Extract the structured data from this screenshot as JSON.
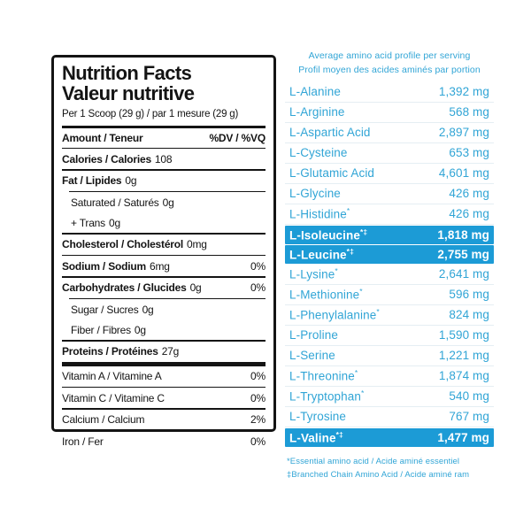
{
  "nutrition_label": {
    "title_line1": "Nutrition Facts",
    "title_line2": "Valeur nutritive",
    "serving_line": "Per 1 Scoop (29 g) / par 1 mesure (29 g)",
    "column_header": {
      "label": "Amount / Teneur",
      "dv": "%DV / %VQ"
    },
    "rows": [
      {
        "label": "Calories / Calories",
        "amount": "108",
        "dv": "",
        "bold": true,
        "indent": false,
        "divider_after": "thin"
      },
      {
        "label": "Fat / Lipides",
        "amount": "0g",
        "dv": "",
        "bold": true,
        "indent": false,
        "divider_after": "thin-indent"
      },
      {
        "label": "Saturated / Saturés",
        "amount": "0g",
        "dv": "",
        "bold": false,
        "indent": true,
        "divider_after": "none"
      },
      {
        "label": "+ Trans",
        "amount": "0g",
        "dv": "",
        "bold": false,
        "indent": true,
        "divider_after": "thin"
      },
      {
        "label": "Cholesterol / Cholestérol",
        "amount": "0mg",
        "dv": "",
        "bold": true,
        "indent": false,
        "divider_after": "thin"
      },
      {
        "label": "Sodium / Sodium",
        "amount": "6mg",
        "dv": "0%",
        "bold": true,
        "indent": false,
        "divider_after": "thin"
      },
      {
        "label": "Carbohydrates / Glucides",
        "amount": "0g",
        "dv": "0%",
        "bold": true,
        "indent": false,
        "divider_after": "thin-indent"
      },
      {
        "label": "Sugar / Sucres",
        "amount": "0g",
        "dv": "",
        "bold": false,
        "indent": true,
        "divider_after": "none"
      },
      {
        "label": "Fiber / Fibres",
        "amount": "0g",
        "dv": "",
        "bold": false,
        "indent": true,
        "divider_after": "thin"
      },
      {
        "label": "Proteins / Protéines",
        "amount": "27g",
        "dv": "",
        "bold": true,
        "indent": false,
        "divider_after": "thick"
      },
      {
        "label": "Vitamin A / Vitamine A",
        "amount": "",
        "dv": "0%",
        "bold": false,
        "indent": false,
        "divider_after": "thin"
      },
      {
        "label": "Vitamin C / Vitamine C",
        "amount": "",
        "dv": "0%",
        "bold": false,
        "indent": false,
        "divider_after": "thin"
      },
      {
        "label": "Calcium / Calcium",
        "amount": "",
        "dv": "2%",
        "bold": false,
        "indent": false,
        "divider_after": "thin"
      },
      {
        "label": "Iron / Fer",
        "amount": "",
        "dv": "0%",
        "bold": false,
        "indent": false,
        "divider_after": "none"
      }
    ]
  },
  "amino_profile": {
    "title_line1": "Average amino acid profile per serving",
    "title_line2": "Profil moyen des acides aminés par portion",
    "rows": [
      {
        "name": "L-Alanine",
        "marker": "",
        "value": "1,392 mg",
        "highlight": false
      },
      {
        "name": "L-Arginine",
        "marker": "",
        "value": "568 mg",
        "highlight": false
      },
      {
        "name": "L-Aspartic Acid",
        "marker": "",
        "value": "2,897 mg",
        "highlight": false
      },
      {
        "name": "L-Cysteine",
        "marker": "",
        "value": "653 mg",
        "highlight": false
      },
      {
        "name": "L-Glutamic Acid",
        "marker": "",
        "value": "4,601 mg",
        "highlight": false
      },
      {
        "name": "L-Glycine",
        "marker": "",
        "value": "426 mg",
        "highlight": false
      },
      {
        "name": "L-Histidine",
        "marker": "*",
        "value": "426 mg",
        "highlight": false
      },
      {
        "name": "L-Isoleucine",
        "marker": "*‡",
        "value": "1,818 mg",
        "highlight": true
      },
      {
        "name": "L-Leucine",
        "marker": "*‡",
        "value": "2,755 mg",
        "highlight": true
      },
      {
        "name": "L-Lysine",
        "marker": "*",
        "value": "2,641 mg",
        "highlight": false
      },
      {
        "name": "L-Methionine",
        "marker": "*",
        "value": "596 mg",
        "highlight": false
      },
      {
        "name": "L-Phenylalanine",
        "marker": "*",
        "value": "824 mg",
        "highlight": false
      },
      {
        "name": "L-Proline",
        "marker": "",
        "value": "1,590 mg",
        "highlight": false
      },
      {
        "name": "L-Serine",
        "marker": "",
        "value": "1,221 mg",
        "highlight": false
      },
      {
        "name": "L-Threonine",
        "marker": "*",
        "value": "1,874 mg",
        "highlight": false
      },
      {
        "name": "L-Tryptophan",
        "marker": "*",
        "value": "540 mg",
        "highlight": false
      },
      {
        "name": "L-Tyrosine",
        "marker": "",
        "value": "767 mg",
        "highlight": false
      },
      {
        "name": "L-Valine",
        "marker": "*‡",
        "value": "1,477 mg",
        "highlight": true
      }
    ],
    "footnotes": [
      "*Essential amino acid / Acide aminé essentiel",
      "‡Branched Chain Amino Acid / Acide aminé ram"
    ],
    "colors": {
      "text": "#31a5d6",
      "highlight_bg": "#1c9bd6",
      "highlight_text": "#ffffff"
    }
  }
}
